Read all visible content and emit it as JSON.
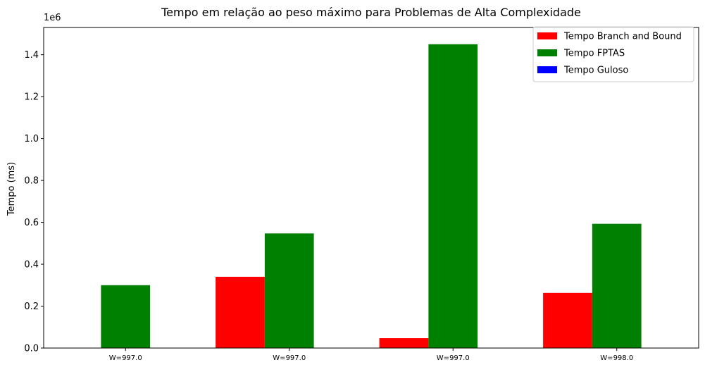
{
  "chart_data": {
    "type": "bar",
    "title": "Tempo em relação ao peso máximo para Problemas de Alta Complexidade",
    "xlabel": "",
    "ylabel": "Tempo (ms)",
    "y_offset_text": "1e6",
    "categories": [
      "W=997.0",
      "W=997.0",
      "W=997.0",
      "W=998.0"
    ],
    "series": [
      {
        "name": "Tempo Branch and Bound",
        "color": "#ff0000",
        "values": [
          0,
          340000,
          47000,
          263000
        ]
      },
      {
        "name": "Tempo FPTAS",
        "color": "#008000",
        "values": [
          300000,
          547000,
          1450000,
          593000
        ]
      },
      {
        "name": "Tempo Guloso",
        "color": "#0000ff",
        "values": [
          0,
          0,
          0,
          0
        ]
      }
    ],
    "ylim": [
      0,
      1530000
    ],
    "yticks": [
      0,
      200000,
      400000,
      600000,
      800000,
      1000000,
      1200000,
      1400000
    ],
    "ytick_labels": [
      "0.0",
      "0.2",
      "0.4",
      "0.6",
      "0.8",
      "1.0",
      "1.2",
      "1.4"
    ],
    "grid": false,
    "legend_position": "top-right"
  }
}
